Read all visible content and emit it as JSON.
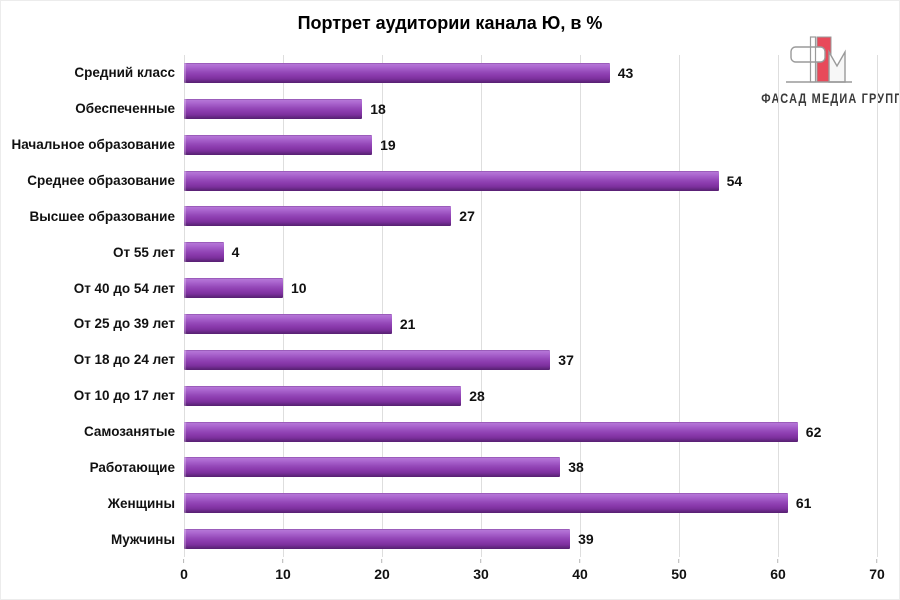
{
  "title": "Портрет аудитории канала Ю, в %",
  "logo": {
    "text": "ФАСАД МЕДИА ГРУПП",
    "accent_red": "#e84a5a",
    "outline_grey": "#9a9a9a",
    "text_color": "#3a3a3a"
  },
  "chart_data": {
    "type": "bar",
    "orientation": "horizontal",
    "title": "Портрет аудитории канала Ю, в %",
    "categories": [
      "Средний класс",
      "Обеспеченные",
      "Начальное образование",
      "Среднее образование",
      "Высшее образование",
      "От 55 лет",
      "От 40 до 54 лет",
      "От 25 до 39 лет",
      "От 18 до 24 лет",
      "От 10 до 17 лет",
      "Самозанятые",
      "Работающие",
      "Женщины",
      "Мужчины"
    ],
    "values": [
      43,
      18,
      19,
      54,
      27,
      4,
      10,
      21,
      37,
      28,
      62,
      38,
      61,
      39
    ],
    "xlim": [
      0,
      70
    ],
    "x_ticks": [
      0,
      10,
      20,
      30,
      40,
      50,
      60,
      70
    ],
    "bar_color": "#8e3fae",
    "grid": true,
    "legend": false,
    "data_labels": true
  }
}
